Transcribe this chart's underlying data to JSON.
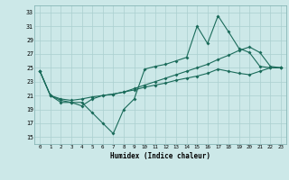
{
  "xlabel": "Humidex (Indice chaleur)",
  "bg_color": "#cce8e8",
  "grid_color": "#aacfcf",
  "line_color": "#1a6b5a",
  "xlim": [
    -0.5,
    23.5
  ],
  "ylim": [
    14,
    34
  ],
  "yticks": [
    15,
    17,
    19,
    21,
    23,
    25,
    27,
    29,
    31,
    33
  ],
  "xticks": [
    0,
    1,
    2,
    3,
    4,
    5,
    6,
    7,
    8,
    9,
    10,
    11,
    12,
    13,
    14,
    15,
    16,
    17,
    18,
    19,
    20,
    21,
    22,
    23
  ],
  "series": [
    [
      24.5,
      21.0,
      20.0,
      20.0,
      20.0,
      18.5,
      17.0,
      15.5,
      19.0,
      20.5,
      24.8,
      25.2,
      25.5,
      26.0,
      26.5,
      31.0,
      28.5,
      32.5,
      30.2,
      27.8,
      27.2,
      25.2,
      25.0,
      25.0
    ],
    [
      24.5,
      21.0,
      20.5,
      20.3,
      20.5,
      20.8,
      21.0,
      21.2,
      21.5,
      21.8,
      22.2,
      22.5,
      22.8,
      23.2,
      23.5,
      23.8,
      24.2,
      24.8,
      24.5,
      24.2,
      24.0,
      24.5,
      25.0,
      25.0
    ],
    [
      24.5,
      21.0,
      20.3,
      20.0,
      19.5,
      20.5,
      21.0,
      21.2,
      21.5,
      22.0,
      22.5,
      23.0,
      23.5,
      24.0,
      24.5,
      25.0,
      25.5,
      26.2,
      26.8,
      27.5,
      28.0,
      27.2,
      25.2,
      25.0
    ]
  ]
}
